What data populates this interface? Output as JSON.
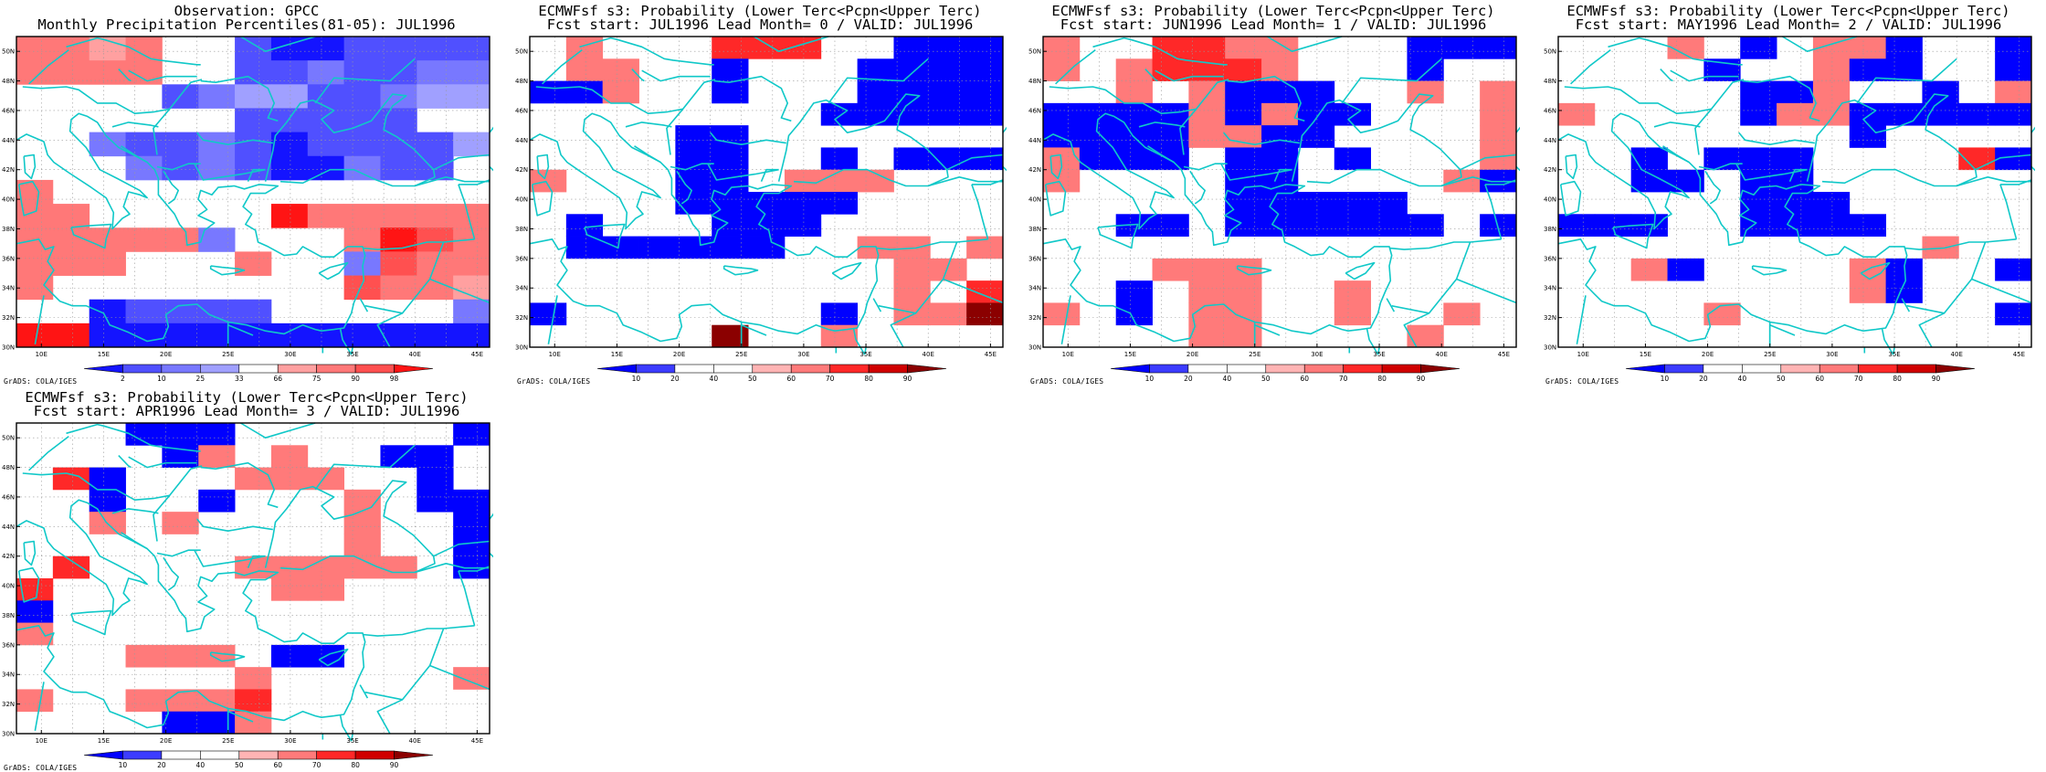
{
  "page": {
    "axis_labels": {
      "lat": [
        "30N",
        "32N",
        "34N",
        "36N",
        "38N",
        "40N",
        "42N",
        "44N",
        "46N",
        "48N",
        "50N"
      ],
      "lon": [
        "10E",
        "15E",
        "20E",
        "25E",
        "30E",
        "35E",
        "40E",
        "45E"
      ]
    },
    "credit": "GrADS: COLA/IGES"
  },
  "palettes": {
    "obs": [
      "#1414ff",
      "#5050ff",
      "#7878ff",
      "#a0a0ff",
      "#ffffff",
      "#ffa0a0",
      "#ff7878",
      "#ff5050",
      "#ff1414"
    ],
    "prob": [
      "#0000ff",
      "#3c3cff",
      "#ffffff",
      "#ffffff",
      "#ffb4b4",
      "#ff7a7a",
      "#ff2828",
      "#d00000",
      "#8b0000"
    ]
  },
  "panels": [
    {
      "id": "obs",
      "title_line1": "Observation: GPCC",
      "title_line2": "Monthly Precipitation Percentiles(81-05): JUL1996",
      "palette": "obs",
      "colorbar_labels": [
        "2",
        "10",
        "25",
        "33",
        "66",
        "75",
        "90",
        "98"
      ],
      "grid": [
        "6656441001111",
        "6666441121122",
        "4444123311233",
        "4444441111144",
        "4421121011113",
        "4442121002114",
        "6444444444444",
        "6644444866666",
        "6666624446876",
        "6664446442766",
        "6444444447665",
        "4401111444442",
        "8800000000000"
      ]
    },
    {
      "id": "lead0",
      "title_line1": "ECMWFsf s3: Probability (Lower Terc<Pcpn<Upper Terc)",
      "title_line2": "Fcst start: JUL1996  Lead Month= 0 / VALID: JUL1996",
      "palette": "prob",
      "colorbar_labels": [
        "10",
        "20",
        "40",
        "50",
        "60",
        "70",
        "80",
        "90"
      ],
      "grid": [
        "2522266622000",
        "2552202220000",
        "0052202220000",
        "2222222200000",
        "2222002222222",
        "2222002202000",
        "5222002555222",
        "2222000002222",
        "2022200022222",
        "2000000225525",
        "2222222222552",
        "2222222222526",
        "0222222202558",
        "2222282252222"
      ]
    },
    {
      "id": "lead1",
      "title_line1": "ECMWFsf s3: Probability (Lower Terc<Pcpn<Upper Terc)",
      "title_line2": "Fcst start: JUN1996  Lead Month= 1 / VALID: JUL1996",
      "palette": "prob",
      "colorbar_labels": [
        "10",
        "20",
        "40",
        "50",
        "60",
        "70",
        "80",
        "90"
      ],
      "grid": [
        "5226655222000",
        "5256665222022",
        "2252500022525",
        "0000505002225",
        "0000550022225",
        "5000200202225",
        "5222200222250",
        "2222200000222",
        "2200200000020",
        "2222222222222",
        "2225552222222",
        "2202552252222",
        "5202552252252",
        "2222552222522"
      ]
    },
    {
      "id": "lead2",
      "title_line1": "ECMWFsf s3: Probability (Lower Terc<Pcpn<Upper Terc)",
      "title_line2": "Fcst start: MAY1996  Lead Month= 2 / VALID: JUL1996",
      "palette": "prob",
      "colorbar_labels": [
        "10",
        "20",
        "40",
        "50",
        "60",
        "70",
        "80",
        "90"
      ],
      "grid": [
        "2225202550220",
        "2222022500220",
        "2222200522025",
        "5222205500000",
        "2222222202222",
        "2202000222260",
        "2200200222222",
        "2222200022222",
        "0002200002222",
        "2222222222522",
        "2250222250220",
        "2222222250222",
        "2222522222220",
        "2222222222222"
      ]
    },
    {
      "id": "lead3",
      "title_line1": "ECMWFsf s3: Probability (Lower Terc<Pcpn<Upper Terc)",
      "title_line2": "Fcst start: APR1996  Lead Month= 3 / VALID: JUL1996",
      "palette": "prob",
      "colorbar_labels": [
        "10",
        "20",
        "40",
        "50",
        "60",
        "70",
        "80",
        "90"
      ],
      "grid": [
        "2220002222220",
        "2222052522002",
        "2602225552202",
        "2202202225200",
        "2252522225220",
        "2222222225220",
        "2622225555520",
        "6222222552222",
        "0222222222222",
        "5222222222222",
        "2225552002222",
        "2222225222225",
        "5225556222222",
        "2222005222222"
      ]
    }
  ]
}
